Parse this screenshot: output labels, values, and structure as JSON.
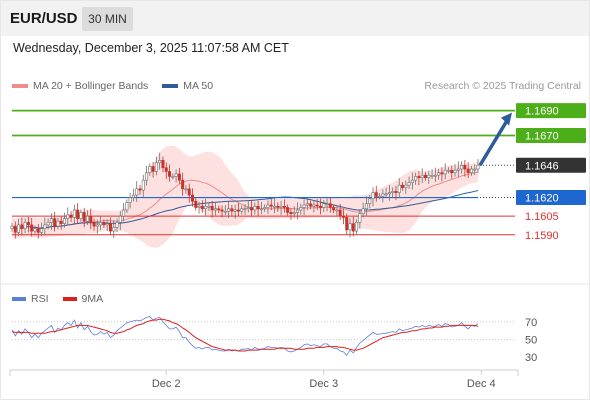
{
  "header": {
    "symbol": "EUR/USD",
    "timeframe": "30 MIN"
  },
  "datetime": "Wednesday, December 3, 2025 11:07:58 AM CET",
  "legend": [
    {
      "label": "MA 20 + Bollinger Bands",
      "color": "#f08c8c"
    },
    {
      "label": "MA 50",
      "color": "#2e5b9a"
    }
  ],
  "copyright": "Research © 2025 Trading Central",
  "rsi_legend": [
    {
      "label": "RSI",
      "color": "#5b7fd6"
    },
    {
      "label": "9MA",
      "color": "#dd1f1f"
    }
  ],
  "colors": {
    "target_green": "#4caf1a",
    "pivot_blue": "#1e66d0",
    "support_red": "#e33030",
    "current_badge": "#333333",
    "arrow": "#2e5b9a",
    "candle_up": "#6f6f6f",
    "candle_down": "#c8322a",
    "bb_fill": "#fcd7d5",
    "ma20": "#f08c8c",
    "ma50": "#2e5b9a"
  },
  "chart_data": [
    {
      "type": "candlestick",
      "ylim": [
        1.1552,
        1.1705
      ],
      "levels": [
        {
          "value": 1.169,
          "label": "1.1690",
          "kind": "target"
        },
        {
          "value": 1.167,
          "label": "1.1670",
          "kind": "target"
        },
        {
          "value": 1.1646,
          "label": "1.1646",
          "kind": "current"
        },
        {
          "value": 1.162,
          "label": "1.1620",
          "kind": "pivot"
        },
        {
          "value": 1.1605,
          "label": "1.1605",
          "kind": "support"
        },
        {
          "value": 1.159,
          "label": "1.1590",
          "kind": "support"
        }
      ],
      "close": [
        1.1597,
        1.1592,
        1.1598,
        1.1595,
        1.16,
        1.1598,
        1.1593,
        1.1595,
        1.1592,
        1.1595,
        1.1598,
        1.16,
        1.1603,
        1.1597,
        1.1601,
        1.1599,
        1.1603,
        1.1606,
        1.1604,
        1.161,
        1.1603,
        1.1608,
        1.1601,
        1.1605,
        1.16,
        1.1597,
        1.1598,
        1.16,
        1.1598,
        1.1599,
        1.1593,
        1.1596,
        1.16,
        1.1605,
        1.161,
        1.1616,
        1.162,
        1.1622,
        1.1627,
        1.1626,
        1.1634,
        1.164,
        1.1645,
        1.1641,
        1.1648,
        1.165,
        1.1644,
        1.1641,
        1.1637,
        1.1637,
        1.1639,
        1.1634,
        1.1627,
        1.1627,
        1.1622,
        1.1617,
        1.1612,
        1.1613,
        1.1611,
        1.1613,
        1.1613,
        1.161,
        1.1611,
        1.161,
        1.1609,
        1.1609,
        1.1611,
        1.1609,
        1.161,
        1.1609,
        1.1611,
        1.1611,
        1.1612,
        1.161,
        1.1613,
        1.1611,
        1.1611,
        1.1612,
        1.1614,
        1.1613,
        1.1613,
        1.1612,
        1.1613,
        1.1612,
        1.1608,
        1.1607,
        1.1608,
        1.161,
        1.1612,
        1.1614,
        1.1615,
        1.1613,
        1.1614,
        1.1613,
        1.1612,
        1.1615,
        1.1615,
        1.1612,
        1.161,
        1.161,
        1.1605,
        1.1604,
        1.1594,
        1.1599,
        1.1593,
        1.16,
        1.1607,
        1.1611,
        1.1615,
        1.1619,
        1.1624,
        1.1621,
        1.1621,
        1.1623,
        1.1623,
        1.1624,
        1.1625,
        1.1624,
        1.163,
        1.1628,
        1.163,
        1.1632,
        1.1634,
        1.1637,
        1.1636,
        1.1638,
        1.1636,
        1.1638,
        1.1638,
        1.1638,
        1.164,
        1.1639,
        1.1642,
        1.1642,
        1.164,
        1.1642,
        1.1643,
        1.1646,
        1.1643,
        1.164,
        1.1643,
        1.1643,
        1.1646
      ],
      "x_ticks": [
        {
          "label": "Dec 2",
          "index": 47
        },
        {
          "label": "Dec 3",
          "index": 95
        },
        {
          "label": "Dec 4",
          "index": 143
        }
      ]
    },
    {
      "type": "line",
      "title": "RSI",
      "ylim": [
        20,
        80
      ],
      "y_ticks": [
        70,
        50,
        30
      ],
      "series": [
        {
          "name": "RSI",
          "values": [
            61,
            54,
            60,
            56,
            62,
            58,
            52,
            56,
            52,
            57,
            60,
            63,
            66,
            58,
            63,
            61,
            66,
            69,
            66,
            72,
            63,
            69,
            61,
            65,
            59,
            55,
            56,
            59,
            56,
            58,
            52,
            55,
            60,
            63,
            66,
            69,
            70,
            71,
            72,
            71,
            73,
            75,
            76,
            72,
            74,
            75,
            70,
            66,
            62,
            62,
            64,
            59,
            52,
            52,
            47,
            43,
            40,
            41,
            39,
            41,
            41,
            38,
            39,
            38,
            37,
            37,
            39,
            37,
            38,
            37,
            39,
            39,
            40,
            38,
            41,
            39,
            39,
            40,
            42,
            41,
            41,
            40,
            41,
            40,
            37,
            36,
            37,
            39,
            41,
            44,
            45,
            43,
            44,
            43,
            42,
            45,
            45,
            42,
            40,
            40,
            37,
            36,
            32,
            38,
            35,
            41,
            46,
            49,
            52,
            55,
            58,
            56,
            56,
            57,
            57,
            58,
            59,
            58,
            62,
            60,
            61,
            62,
            63,
            65,
            64,
            66,
            64,
            66,
            65,
            65,
            67,
            65,
            68,
            67,
            64,
            65,
            66,
            69,
            65,
            62,
            66,
            65,
            68
          ]
        },
        {
          "name": "9MA",
          "values": [
            59,
            58,
            58,
            58,
            58,
            58,
            57,
            57,
            57,
            57,
            57,
            58,
            59,
            59,
            60,
            61,
            62,
            63,
            64,
            65,
            66,
            66,
            66,
            66,
            65,
            64,
            63,
            62,
            61,
            60,
            58,
            57,
            57,
            58,
            59,
            61,
            62,
            64,
            66,
            67,
            68,
            70,
            71,
            72,
            72,
            73,
            73,
            72,
            71,
            69,
            68,
            66,
            63,
            61,
            58,
            55,
            52,
            50,
            48,
            46,
            44,
            42,
            41,
            40,
            39,
            38,
            38,
            38,
            38,
            37,
            37,
            37,
            38,
            38,
            38,
            38,
            39,
            39,
            39,
            39,
            39,
            40,
            40,
            40,
            40,
            40,
            39,
            39,
            39,
            39,
            40,
            40,
            40,
            41,
            41,
            41,
            42,
            42,
            42,
            42,
            41,
            41,
            40,
            39,
            38,
            38,
            39,
            40,
            42,
            44,
            46,
            48,
            50,
            52,
            53,
            54,
            55,
            56,
            57,
            58,
            58,
            59,
            60,
            60,
            61,
            62,
            62,
            63,
            63,
            64,
            64,
            64,
            65,
            65,
            66,
            66,
            66,
            66,
            66,
            66,
            66,
            66,
            65
          ]
        }
      ]
    }
  ]
}
